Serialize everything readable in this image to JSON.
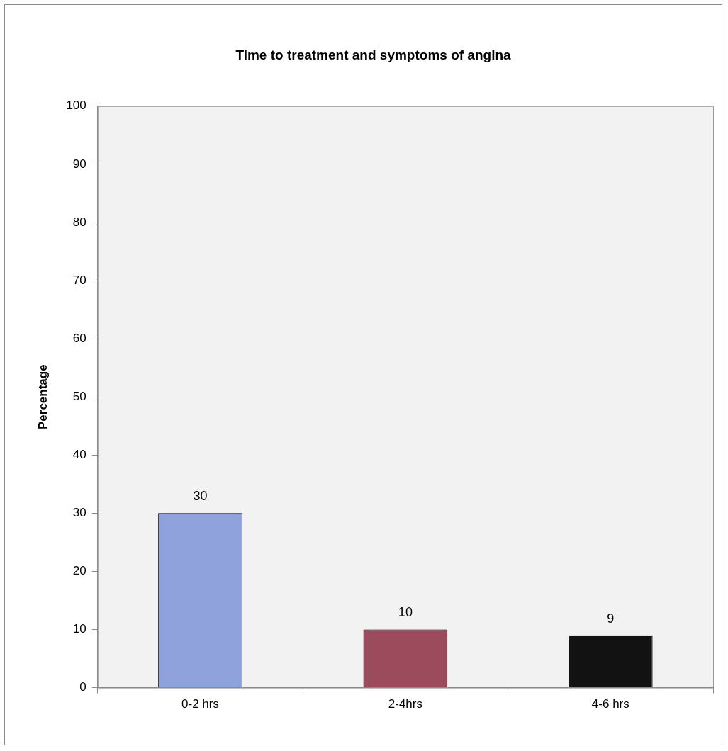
{
  "chart_data": {
    "type": "bar",
    "title": "Time to treatment and symptoms of angina",
    "ylabel": "Percentage",
    "categories": [
      "0-2 hrs",
      "2-4hrs",
      "4-6 hrs"
    ],
    "values": [
      30,
      10,
      9
    ],
    "colors": [
      "#8fa2dc",
      "#9b4b5b",
      "#121212"
    ],
    "ylim": [
      0,
      100
    ],
    "yticks": [
      0,
      10,
      20,
      30,
      40,
      50,
      60,
      70,
      80,
      90,
      100
    ],
    "data_labels": true,
    "grid": false,
    "legend": false
  }
}
